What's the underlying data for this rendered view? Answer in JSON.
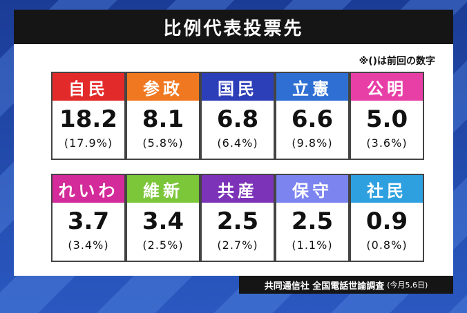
{
  "title": "比例代表投票先",
  "note": "※()は前回の数字",
  "source": {
    "label": "共同通信社 全国電話世論調査",
    "date": "(今月5,6日)"
  },
  "chart_data": {
    "type": "table",
    "title": "比例代表投票先",
    "columns": [
      "party",
      "current",
      "previous"
    ],
    "rows": [
      {
        "party": "自民",
        "value": "18.2",
        "prev": "(17.9%)",
        "color": "#e32a2a"
      },
      {
        "party": "参政",
        "value": "8.1",
        "prev": "(5.8%)",
        "color": "#f07820"
      },
      {
        "party": "国民",
        "value": "6.8",
        "prev": "(6.4%)",
        "color": "#2d3fb8"
      },
      {
        "party": "立憲",
        "value": "6.6",
        "prev": "(9.8%)",
        "color": "#2f6fd3"
      },
      {
        "party": "公明",
        "value": "5.0",
        "prev": "(3.6%)",
        "color": "#e83fa7"
      },
      {
        "party": "れいわ",
        "value": "3.7",
        "prev": "(3.4%)",
        "color": "#d42b9a"
      },
      {
        "party": "維新",
        "value": "3.4",
        "prev": "(2.5%)",
        "color": "#7cc63a"
      },
      {
        "party": "共産",
        "value": "2.5",
        "prev": "(2.7%)",
        "color": "#7c33b8"
      },
      {
        "party": "保守",
        "value": "2.5",
        "prev": "(1.1%)",
        "color": "#7b84ef"
      },
      {
        "party": "社民",
        "value": "0.9",
        "prev": "(0.8%)",
        "color": "#2ea0e0"
      }
    ]
  }
}
